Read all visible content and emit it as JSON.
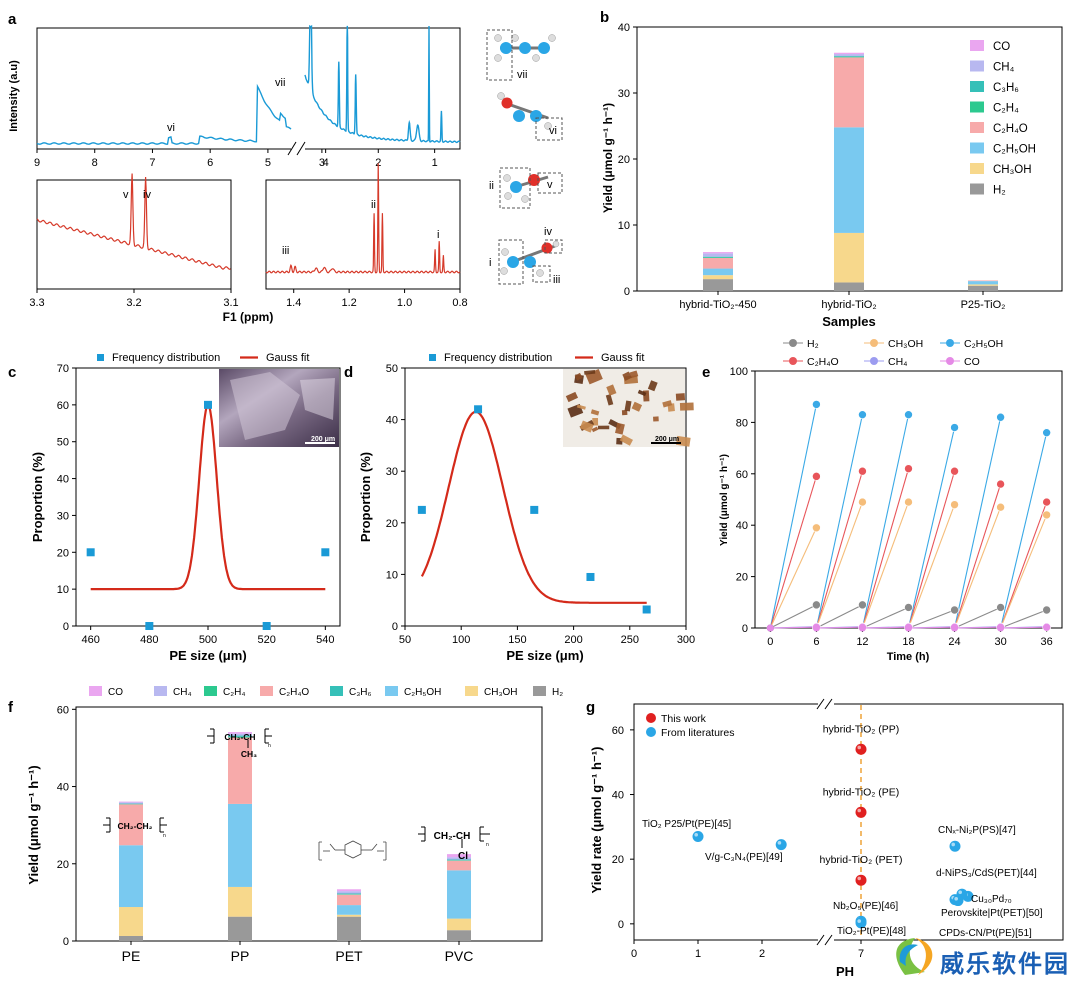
{
  "colors": {
    "blue": "#1a9ad6",
    "red": "#d63a2a",
    "gauss": "#d42a1a",
    "sq": "#1a9ad6"
  },
  "panels": {
    "a": "a",
    "b": "b",
    "c": "c",
    "d": "d",
    "e": "e",
    "f": "f",
    "g": "g"
  },
  "watermark": {
    "text": "威乐软件园"
  },
  "chart_data": [
    {
      "id": "a",
      "type": "line",
      "xlabel": "F1 (ppm)",
      "ylabel": "Intensity (a.u)",
      "main": {
        "xticks": [
          "9",
          "8",
          "7",
          "6",
          "5",
          "4",
          "3",
          "2",
          "1"
        ],
        "peaks": [
          "vii",
          "vi"
        ]
      },
      "inset_left": {
        "xlim": [
          3.3,
          3.1
        ],
        "xticks": [
          "3.3",
          "3.2",
          "3.1"
        ],
        "peaks": [
          "v",
          "iv"
        ]
      },
      "inset_right": {
        "xlim": [
          1.5,
          0.8
        ],
        "xticks": [
          "1.4",
          "1.2",
          "1.0",
          "0.8"
        ],
        "peaks": [
          "iii",
          "ii",
          "i"
        ]
      },
      "molecule_labels": [
        "vii",
        "vi",
        "ii",
        "v",
        "iv",
        "i",
        "iii"
      ]
    },
    {
      "id": "b",
      "type": "bar",
      "stacked": true,
      "xlabel": "Samples",
      "ylabel": "Yield (μmol g⁻¹ h⁻¹)",
      "ylim": [
        0,
        40
      ],
      "yticks": [
        "0",
        "10",
        "20",
        "30",
        "40"
      ],
      "categories": [
        "hybrid-TiO₂-450",
        "hybrid-TiO₂",
        "P25-TiO₂"
      ],
      "series": [
        {
          "name": "H₂",
          "color": "#999999",
          "values": [
            1.8,
            1.3,
            0.8
          ]
        },
        {
          "name": "CH₃OH",
          "color": "#f7d88c",
          "values": [
            0.6,
            7.5,
            0.2
          ]
        },
        {
          "name": "C₂H₅OH",
          "color": "#79c9f0",
          "values": [
            1.0,
            16.0,
            0.5
          ]
        },
        {
          "name": "C₂H₄O",
          "color": "#f7aaaa",
          "values": [
            1.6,
            10.6,
            0.1
          ]
        },
        {
          "name": "C₂H₄",
          "color": "#2cc98f",
          "values": [
            0.1,
            0.1,
            0.0
          ]
        },
        {
          "name": "C₃H₆",
          "color": "#35c0b8",
          "values": [
            0.1,
            0.1,
            0.0
          ]
        },
        {
          "name": "CH₄",
          "color": "#b8b8f0",
          "values": [
            0.5,
            0.3,
            0.0
          ]
        },
        {
          "name": "CO",
          "color": "#eaa6f0",
          "values": [
            0.2,
            0.2,
            0.0
          ]
        }
      ],
      "legend": [
        "CO",
        "CH₄",
        "C₃H₆",
        "C₂H₄",
        "C₂H₄O",
        "C₂H₅OH",
        "CH₃OH",
        "H₂"
      ]
    },
    {
      "id": "c",
      "type": "scatter",
      "xlabel": "PE size (μm)",
      "ylabel": "Proportion (%)",
      "xlim": [
        455,
        545
      ],
      "ylim": [
        0,
        70
      ],
      "xticks": [
        "460",
        "480",
        "500",
        "520",
        "540"
      ],
      "yticks": [
        "0",
        "10",
        "20",
        "30",
        "40",
        "50",
        "60",
        "70"
      ],
      "legend": [
        "Frequency distribution",
        "Gauss fit"
      ],
      "x": [
        460,
        480,
        500,
        520,
        540
      ],
      "y": [
        20,
        0,
        60,
        0,
        20
      ],
      "fit": {
        "y0": 10,
        "A": 50,
        "xc": 500,
        "w": 4.2
      },
      "scale_bar": "200 μm"
    },
    {
      "id": "d",
      "type": "scatter",
      "xlabel": "PE size (μm)",
      "ylabel": "Proportion (%)",
      "xlim": [
        50,
        300
      ],
      "ylim": [
        0,
        50
      ],
      "xticks": [
        "50",
        "100",
        "150",
        "200",
        "250",
        "300"
      ],
      "yticks": [
        "0",
        "10",
        "20",
        "30",
        "40",
        "50"
      ],
      "legend": [
        "Frequency distribution",
        "Gauss fit"
      ],
      "x": [
        65,
        115,
        165,
        215,
        265
      ],
      "y": [
        22.5,
        42,
        22.5,
        9.5,
        3.2
      ],
      "fit": {
        "y0": 4.5,
        "A": 37,
        "xc": 113,
        "w": 46
      },
      "scale_bar": "200 μm"
    },
    {
      "id": "e",
      "type": "line",
      "xlabel": "Time (h)",
      "ylabel": "Yield (μmol g⁻¹ h⁻¹)",
      "xlim": [
        -2,
        38
      ],
      "ylim": [
        0,
        100
      ],
      "xticks": [
        "0",
        "6",
        "12",
        "18",
        "24",
        "30",
        "36"
      ],
      "yticks": [
        "0",
        "20",
        "40",
        "60",
        "80",
        "100"
      ],
      "legend": [
        "H₂",
        "CH₃OH",
        "C₂H₅OH",
        "C₂H₄O",
        "CH₄",
        "CO"
      ],
      "cycles_end": [
        6,
        12,
        18,
        24,
        30,
        36
      ],
      "series": [
        {
          "name": "C₂H₅OH",
          "color": "#3aa9e6",
          "values": [
            87,
            83,
            83,
            78,
            82,
            76
          ]
        },
        {
          "name": "C₂H₄O",
          "color": "#e8555a",
          "values": [
            59,
            61,
            62,
            61,
            56,
            49
          ]
        },
        {
          "name": "CH₃OH",
          "color": "#f5bd7a",
          "values": [
            39,
            49,
            49,
            48,
            47,
            44
          ]
        },
        {
          "name": "H₂",
          "color": "#8a8a8a",
          "values": [
            9,
            9,
            8,
            7,
            8,
            7
          ]
        },
        {
          "name": "CH₄",
          "color": "#9c9cf0",
          "values": [
            0.5,
            0.5,
            0.5,
            0.5,
            0.5,
            0.5
          ]
        },
        {
          "name": "CO",
          "color": "#e58ae6",
          "values": [
            0.3,
            0.3,
            0.3,
            0.3,
            0.3,
            0.3
          ]
        }
      ]
    },
    {
      "id": "f",
      "type": "bar",
      "stacked": true,
      "ylabel": "Yield (μmol g⁻¹ h⁻¹)",
      "ylim": [
        0,
        60
      ],
      "yticks": [
        "0",
        "20",
        "40",
        "60"
      ],
      "categories": [
        "PE",
        "PP",
        "PET",
        "PVC"
      ],
      "legend": [
        "CO",
        "CH₄",
        "C₂H₄",
        "C₂H₄O",
        "C₃H₆",
        "C₂H₅OH",
        "CH₃OH",
        "H₂"
      ],
      "series": [
        {
          "name": "H₂",
          "color": "#999999",
          "values": [
            1.3,
            6.3,
            6.3,
            2.8
          ]
        },
        {
          "name": "CH₃OH",
          "color": "#f7d88c",
          "values": [
            7.5,
            7.7,
            0.5,
            3.0
          ]
        },
        {
          "name": "C₂H₅OH",
          "color": "#79c9f0",
          "values": [
            16.0,
            21.5,
            2.5,
            12.5
          ]
        },
        {
          "name": "C₂H₄O",
          "color": "#f7aaaa",
          "values": [
            10.6,
            17.2,
            2.7,
            2.5
          ]
        },
        {
          "name": "C₂H₄",
          "color": "#2cc98f",
          "values": [
            0.1,
            0.2,
            0.1,
            0.1
          ]
        },
        {
          "name": "C₃H₆",
          "color": "#35c0b8",
          "values": [
            0.1,
            0.3,
            0.2,
            0.2
          ]
        },
        {
          "name": "CH₄",
          "color": "#b8b8f0",
          "values": [
            0.3,
            0.5,
            0.6,
            0.6
          ]
        },
        {
          "name": "CO",
          "color": "#eaa6f0",
          "values": [
            0.2,
            0.4,
            0.5,
            0.8
          ]
        }
      ],
      "structures": {
        "pe": "CH₂-CH₂",
        "pp_top": "CH₂-CH",
        "pp_sub": "CH₃",
        "pvc_top": "CH₂-CH",
        "pvc_sub": "Cl",
        "n": "n"
      }
    },
    {
      "id": "g",
      "type": "scatter",
      "xlabel": "PH",
      "ylabel": "Yield rate (μmol g⁻¹ h⁻¹)",
      "ylim": [
        -5,
        68
      ],
      "yticks": [
        "0",
        "20",
        "40",
        "60"
      ],
      "xticks": [
        "0",
        "1",
        "2",
        "7"
      ],
      "legend": [
        "This work",
        "From literatures"
      ],
      "this_work": [
        {
          "label": "hybrid-TiO₂ (PP)",
          "ph": 7,
          "y": 54
        },
        {
          "label": "hybrid-TiO₂ (PE)",
          "ph": 7,
          "y": 34.5
        },
        {
          "label": "hybrid-TiO₂ (PET)",
          "ph": 7,
          "y": 13.5
        }
      ],
      "literature": [
        {
          "label": "TiO₂ P25/Pt(PE)[45]",
          "ph": 1,
          "y": 27
        },
        {
          "label": "V/g-C₃N₄(PE)[49]",
          "ph": 2.3,
          "y": 24.5
        },
        {
          "label": "Nb₂O₅(PE)[46]",
          "ph": 7,
          "y": 0.8
        },
        {
          "label": "TiO₂-Pt(PE)[48]",
          "ph": 7,
          "y": 0.3
        },
        {
          "label": "CNₓ-Ni₂P(PS)[47]",
          "ph": 9.5,
          "y": 24
        },
        {
          "label": "d-NiPS₃/CdS(PET)[44]",
          "ph": 9.7,
          "y": 8.5
        },
        {
          "label": "Cu₃₀Pd₇₀",
          "ph": 9.6,
          "y": 9.2
        },
        {
          "label": "Perovskite|Pt(PET)[50]",
          "ph": 9.5,
          "y": 7.5
        },
        {
          "label": "CPDs-CN/Pt(PE)[51]",
          "ph": 9.6,
          "y": 7.2
        }
      ]
    }
  ]
}
